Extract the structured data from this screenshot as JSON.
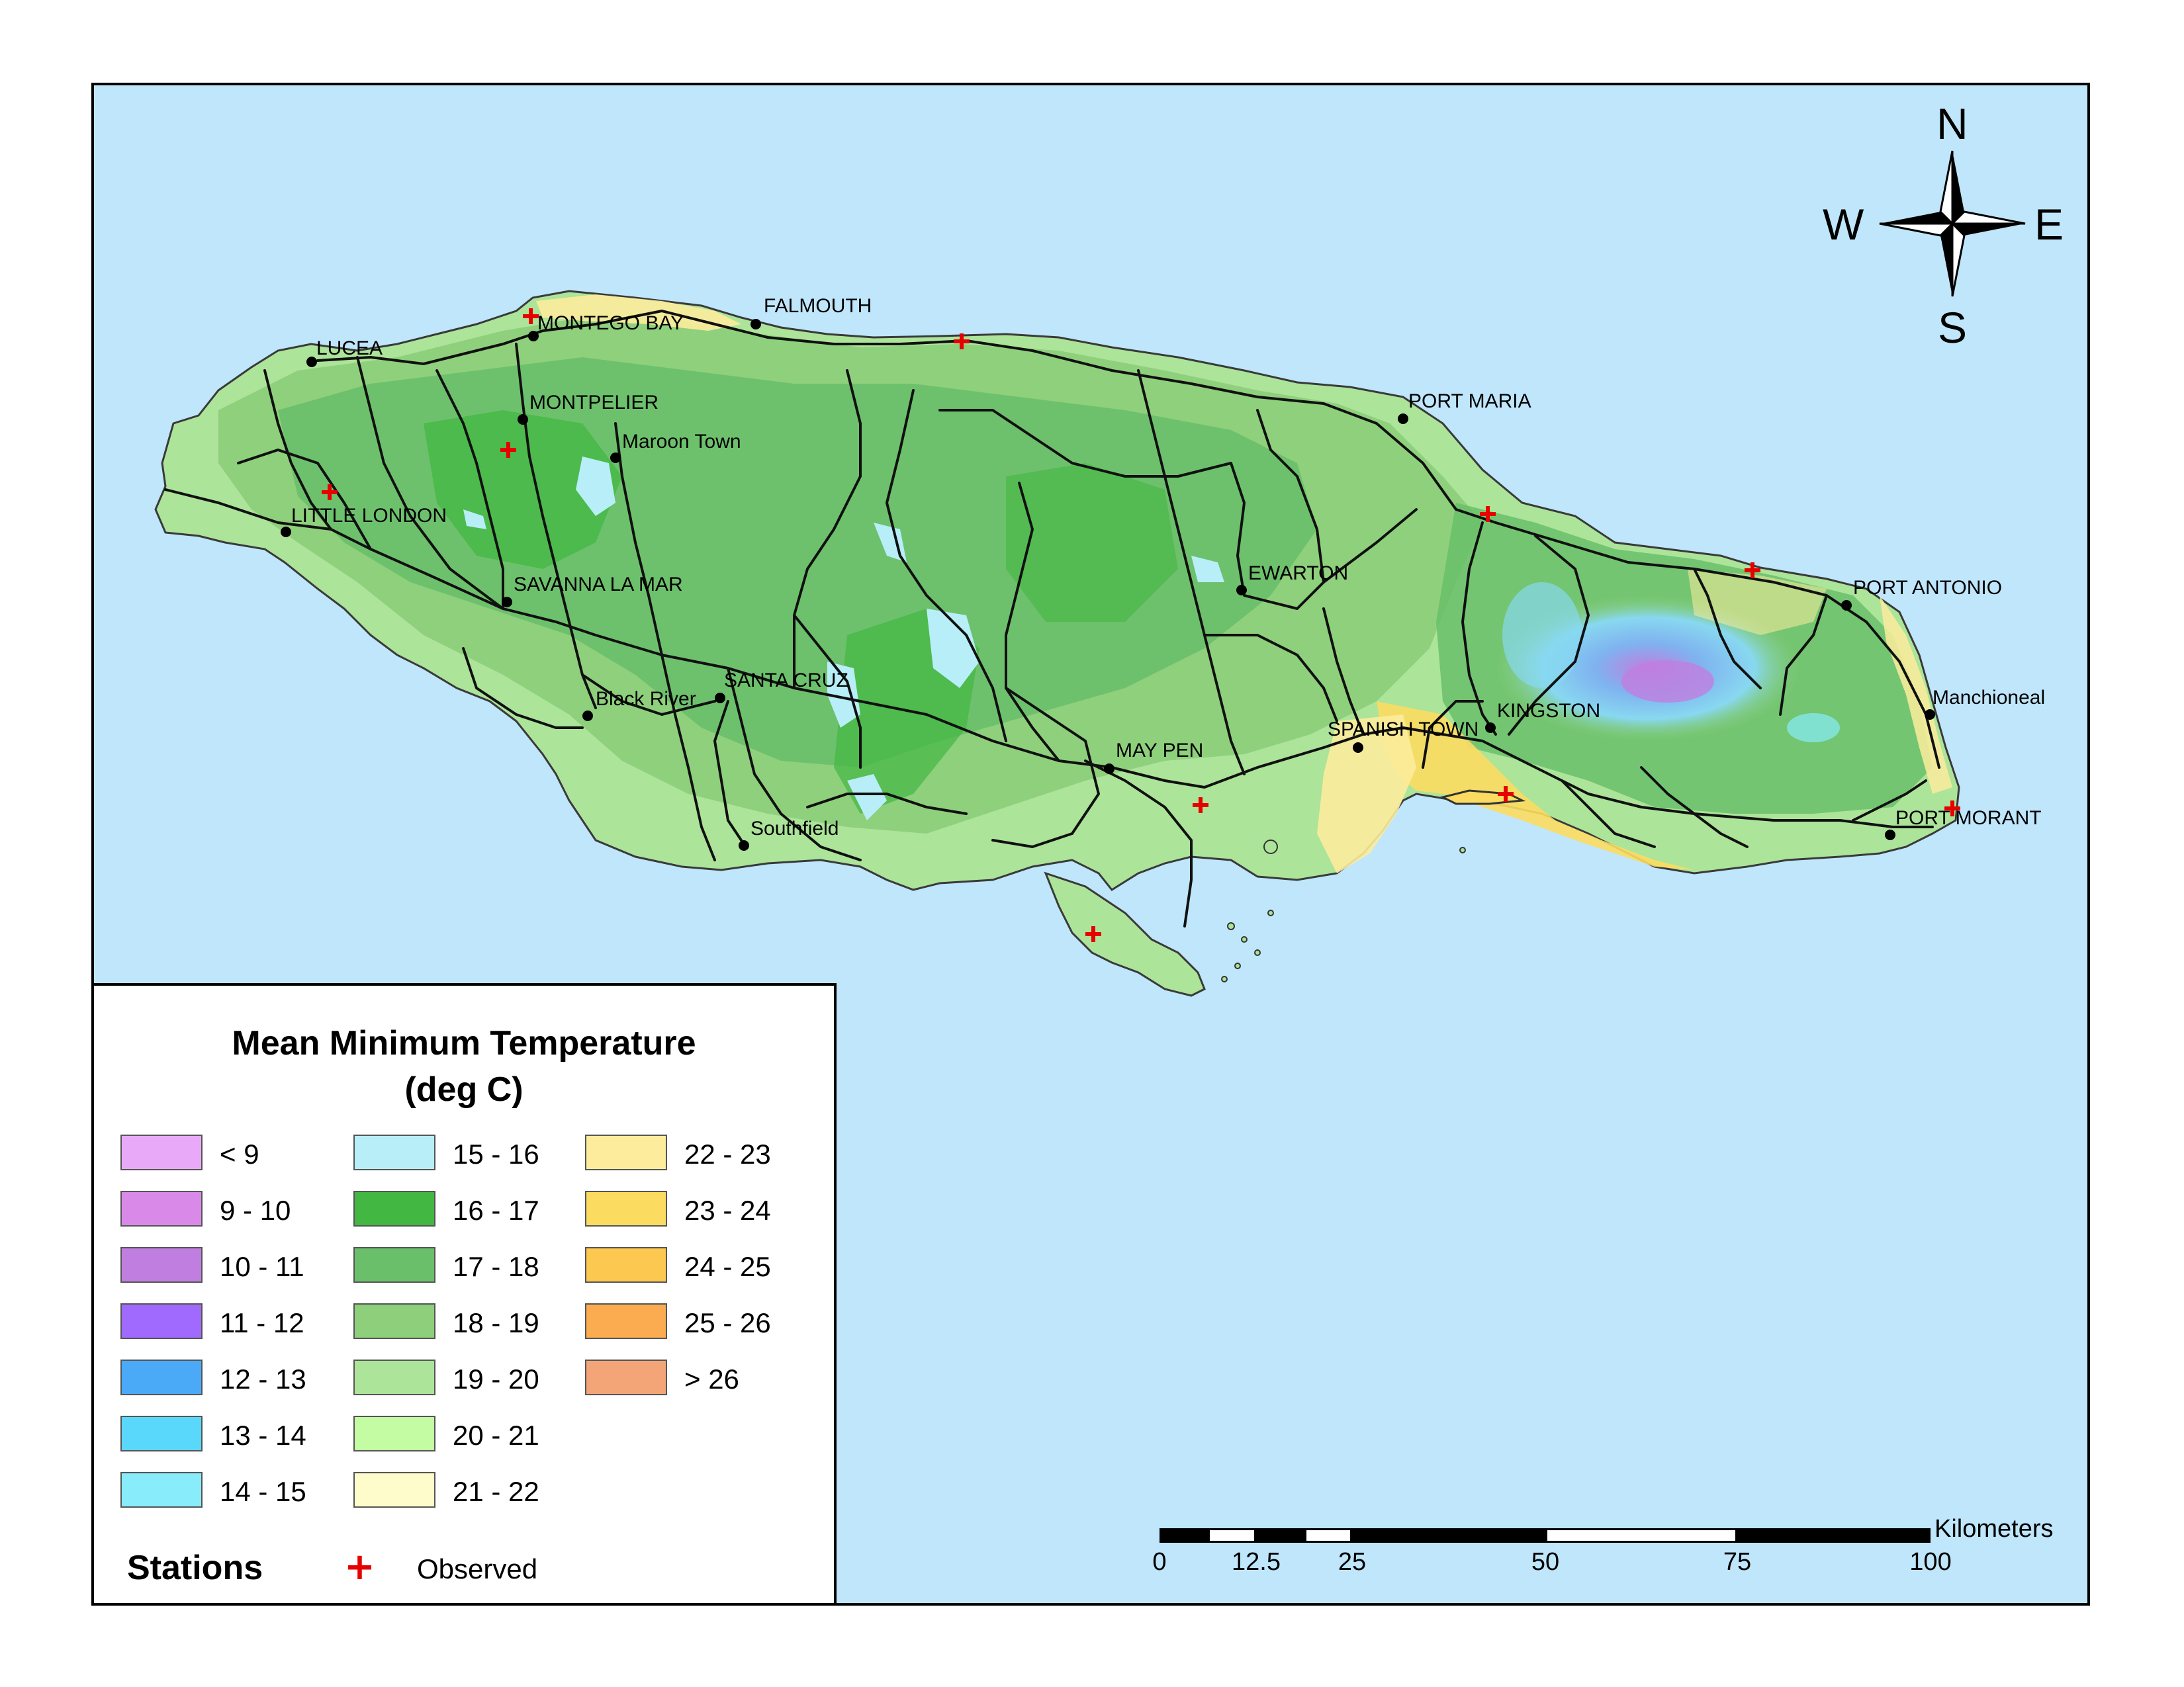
{
  "legend": {
    "title_line1": "Mean Minimum Temperature",
    "title_line2": "(deg C)",
    "classes": [
      {
        "label": "< 9",
        "color": "#e8aaf8"
      },
      {
        "label": "9 - 10",
        "color": "#d98ae8"
      },
      {
        "label": "10 - 11",
        "color": "#c07ee0"
      },
      {
        "label": "11 - 12",
        "color": "#a06aff"
      },
      {
        "label": "12 - 13",
        "color": "#4aaaf8"
      },
      {
        "label": "13 - 14",
        "color": "#5ad8fb"
      },
      {
        "label": "14 - 15",
        "color": "#88ecfb"
      },
      {
        "label": "15 - 16",
        "color": "#b8eef8"
      },
      {
        "label": "16 - 17",
        "color": "#42b742"
      },
      {
        "label": "17 - 18",
        "color": "#6abf6a"
      },
      {
        "label": "18 - 19",
        "color": "#8dcf7a"
      },
      {
        "label": "19 - 20",
        "color": "#ace49a"
      },
      {
        "label": "20 - 21",
        "color": "#c4fca4"
      },
      {
        "label": "21 - 22",
        "color": "#fefccb"
      },
      {
        "label": "22 - 23",
        "color": "#fcec9c"
      },
      {
        "label": "23 - 24",
        "color": "#fcdc60"
      },
      {
        "label": "24 - 25",
        "color": "#fcc850"
      },
      {
        "label": "25 - 26",
        "color": "#fcac50"
      },
      {
        "label": "> 26",
        "color": "#f3a577"
      }
    ],
    "stations_title": "Stations",
    "station_symbol": "+",
    "station_label": "Observed",
    "station_color": "#e60000"
  },
  "compass": {
    "n": "N",
    "s": "S",
    "e": "E",
    "w": "W"
  },
  "scalebar": {
    "unit": "Kilometers",
    "ticks": [
      "0",
      "12.5",
      "25",
      "50",
      "75",
      "100"
    ]
  },
  "places": {
    "lucea": "LUCEA",
    "montego_bay": "MONTEGO BAY",
    "falmouth": "FALMOUTH",
    "montpelier": "MONTPELIER",
    "maroon_town": "Maroon Town",
    "port_maria": "PORT MARIA",
    "little_london": "LITTLE LONDON",
    "savanna_la_mar": "SAVANNA LA MAR",
    "ewarton": "EWARTON",
    "port_antonio": "PORT ANTONIO",
    "black_river": "Black River",
    "santa_cruz": "SANTA CRUZ",
    "manchioneal": "Manchioneal",
    "kingston": "KINGSTON",
    "spanish_town": "SPANISH TOWN",
    "may_pen": "MAY PEN",
    "southfield": "Southfield",
    "port_morant": "PORT MORANT"
  }
}
